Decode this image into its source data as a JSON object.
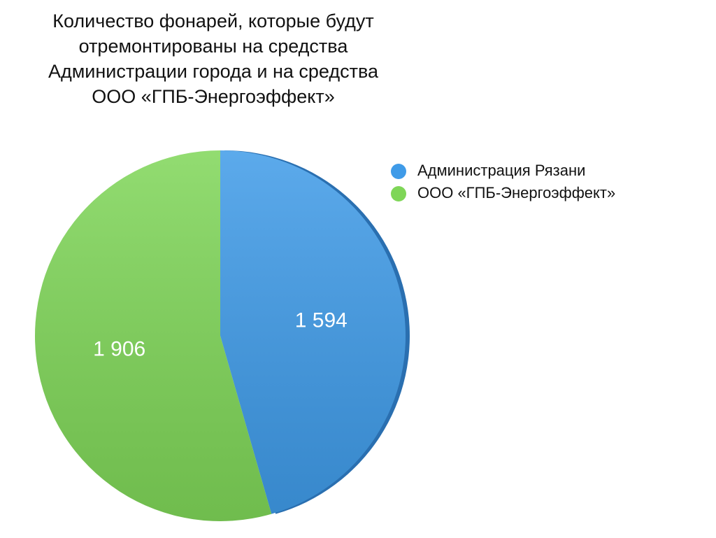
{
  "chart_data": {
    "type": "pie",
    "title": "Количество фонарей, которые будут отремонтированы на средства Администрации города и на средства ООО «ГПБ-Энергоэффект»",
    "categories": [
      "Администрация Рязани",
      "ООО «ГПБ-Энергоэффект»"
    ],
    "values": [
      1594,
      1906
    ],
    "value_labels": [
      "1 594",
      "1 906"
    ],
    "colors": [
      "#3f9be8",
      "#7fd658"
    ],
    "legend": "right"
  }
}
